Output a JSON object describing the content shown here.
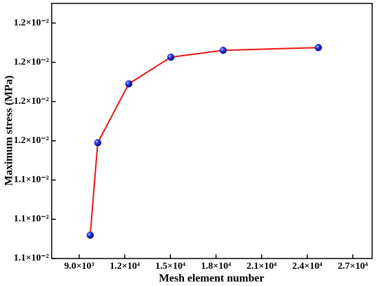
{
  "chart_data": {
    "type": "line",
    "x_label": "Mesh element number",
    "y_label": "Maximum stress (MPa)",
    "x": [
      9725,
      10220,
      12260,
      15030,
      18470,
      24730
    ],
    "series": [
      {
        "name": "Maximum stress",
        "color": "#e8120f",
        "marker_color": "#1420d8",
        "values": [
          0.011119,
          0.01159,
          0.01189,
          0.012026,
          0.012061,
          0.012075
        ]
      }
    ],
    "xlim": [
      7190,
      28270
    ],
    "xticks": [
      {
        "value": 9000,
        "label": "9.0×10³"
      },
      {
        "value": 12000,
        "label": "1.2×10⁴"
      },
      {
        "value": 15000,
        "label": "1.5×10⁴"
      },
      {
        "value": 18000,
        "label": "1.8×10⁴"
      },
      {
        "value": 21000,
        "label": "2.1×10⁴"
      },
      {
        "value": 24000,
        "label": "2.4×10⁴"
      },
      {
        "value": 27000,
        "label": "2.7×10⁴"
      }
    ],
    "ylim": [
      0.011,
      0.0123
    ],
    "yticks": [
      {
        "value": 0.011,
        "label": "1.1×10⁻²"
      },
      {
        "value": 0.0112,
        "label": "1.1×10⁻²"
      },
      {
        "value": 0.0114,
        "label": "1.1×10⁻²"
      },
      {
        "value": 0.0116,
        "label": "1.2×10⁻²"
      },
      {
        "value": 0.0118,
        "label": "1.2×10⁻²"
      },
      {
        "value": 0.012,
        "label": "1.2×10⁻²"
      },
      {
        "value": 0.0122,
        "label": "1.2×10⁻²"
      }
    ]
  }
}
